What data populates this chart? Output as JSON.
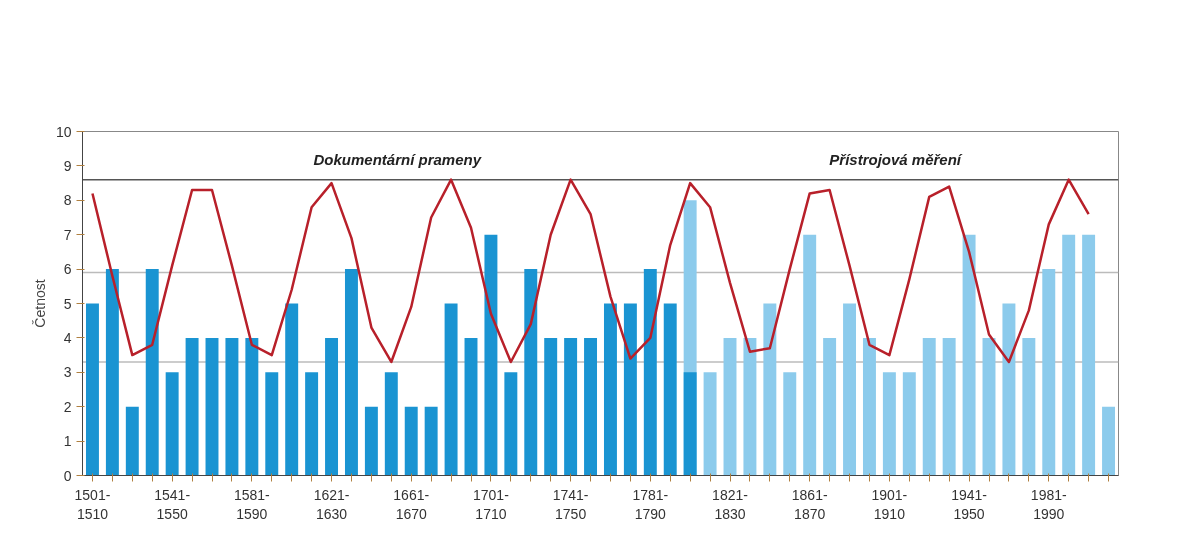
{
  "chart_data": {
    "type": "bar",
    "ylabel": "Četnost",
    "categories": [
      "1501-1510",
      null,
      null,
      null,
      "1541-1550",
      null,
      null,
      null,
      "1581-1590",
      null,
      null,
      null,
      "1621-1630",
      null,
      null,
      null,
      "1661-1670",
      null,
      null,
      null,
      "1701-1710",
      null,
      null,
      null,
      "1741-1750",
      null,
      null,
      null,
      "1781-1790",
      null,
      null,
      null,
      "1821-1830",
      null,
      null,
      null,
      "1861-1870",
      null,
      null,
      null,
      "1901-1910",
      null,
      null,
      null,
      "1941-1950",
      null,
      null,
      null,
      "1981-1990",
      null,
      null,
      null
    ],
    "ylim": [
      0,
      10
    ],
    "yticks": [
      0,
      1,
      2,
      3,
      4,
      5,
      6,
      7,
      8,
      9,
      10
    ],
    "grid": false,
    "series": [
      {
        "color": "#8ccbec",
        "values": [
          null,
          null,
          null,
          null,
          null,
          null,
          null,
          null,
          null,
          null,
          null,
          null,
          null,
          null,
          null,
          null,
          null,
          null,
          null,
          null,
          null,
          null,
          null,
          null,
          null,
          null,
          null,
          null,
          null,
          null,
          8,
          3,
          4,
          4,
          5,
          3,
          7,
          4,
          5,
          4,
          3,
          3,
          4,
          4,
          7,
          4,
          5,
          4,
          6,
          7,
          7,
          2
        ]
      },
      {
        "color": "#1a94d2",
        "values": [
          5,
          6,
          2,
          6,
          3,
          4,
          4,
          4,
          4,
          3,
          5,
          3,
          4,
          6,
          2,
          3,
          2,
          2,
          5,
          4,
          7,
          3,
          6,
          4,
          4,
          4,
          5,
          5,
          6,
          5,
          3,
          null,
          null,
          null,
          null,
          null,
          null,
          null,
          null,
          null,
          null,
          null,
          null,
          null,
          null,
          null,
          null,
          null,
          null,
          null,
          null,
          null
        ]
      },
      {
        "type": "line",
        "color": "#b8202a",
        "values": [
          8.2,
          5.8,
          3.5,
          3.8,
          6.1,
          8.3,
          8.3,
          6.1,
          3.8,
          3.5,
          5.4,
          7.8,
          8.5,
          6.9,
          4.3,
          3.3,
          4.9,
          7.5,
          8.6,
          7.2,
          4.7,
          3.3,
          4.4,
          7.0,
          8.6,
          7.6,
          5.2,
          3.4,
          4.0,
          6.7,
          8.5,
          7.8,
          5.6,
          3.6,
          3.7,
          6.0,
          8.2,
          8.3,
          6.1,
          3.8,
          3.5,
          5.7,
          8.1,
          8.4,
          6.5,
          4.1,
          3.3,
          4.8,
          7.3,
          8.6,
          7.6,
          null
        ]
      }
    ],
    "ref_lines": [
      {
        "axis": "y",
        "value": 8.6,
        "color": "#555555"
      },
      {
        "axis": "y",
        "value": 5.9,
        "color": "#bbbbbb"
      },
      {
        "axis": "y",
        "value": 3.3,
        "color": "#bbbbbb"
      }
    ],
    "annotations": [
      "Dokumentární prameny",
      "Přístrojová měření"
    ]
  }
}
